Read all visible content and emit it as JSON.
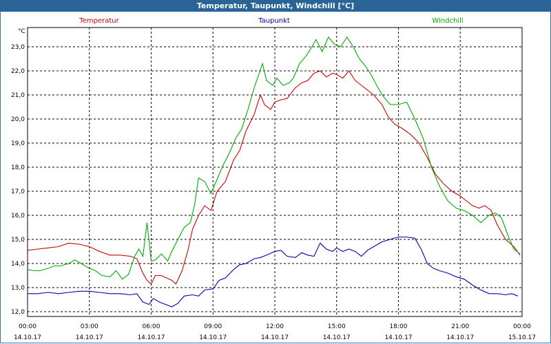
{
  "window": {
    "title": "Temperatur, Taupunkt, Windchill [°C]"
  },
  "chart_data": {
    "type": "line",
    "title": "Temperatur, Taupunkt, Windchill [°C]",
    "ylabel": "°C",
    "ylim": [
      11.8,
      23.8
    ],
    "xlim": [
      "14.10.17 00:00",
      "15.10.17 00:00"
    ],
    "grid": true,
    "legend_position": "top",
    "y_ticks": [
      "12,0",
      "13,0",
      "14,0",
      "15,0",
      "16,0",
      "17,0",
      "18,0",
      "19,0",
      "20,0",
      "21,0",
      "22,0",
      "23,0"
    ],
    "x_ticks": [
      {
        "time": "00:00",
        "date": "14.10.17"
      },
      {
        "time": "03:00",
        "date": "14.10.17"
      },
      {
        "time": "06:00",
        "date": "14.10.17"
      },
      {
        "time": "09:00",
        "date": "14.10.17"
      },
      {
        "time": "12:00",
        "date": "14.10.17"
      },
      {
        "time": "15:00",
        "date": "14.10.17"
      },
      {
        "time": "18:00",
        "date": "14.10.17"
      },
      {
        "time": "21:00",
        "date": "14.10.17"
      },
      {
        "time": "00:00",
        "date": "15.10.17"
      }
    ],
    "x_unit": "hours since 14.10.17 00:00",
    "series": [
      {
        "name": "Temperatur",
        "color": "#cc0000",
        "points": [
          [
            0,
            14.55
          ],
          [
            0.5,
            14.6
          ],
          [
            1,
            14.65
          ],
          [
            1.5,
            14.7
          ],
          [
            2,
            14.85
          ],
          [
            2.5,
            14.8
          ],
          [
            3,
            14.7
          ],
          [
            3.5,
            14.5
          ],
          [
            4,
            14.35
          ],
          [
            4.5,
            14.35
          ],
          [
            5,
            14.3
          ],
          [
            5.3,
            14.2
          ],
          [
            5.6,
            13.6
          ],
          [
            5.8,
            13.3
          ],
          [
            6,
            13.15
          ],
          [
            6.2,
            13.5
          ],
          [
            6.5,
            13.5
          ],
          [
            7,
            13.3
          ],
          [
            7.2,
            13.15
          ],
          [
            7.5,
            13.7
          ],
          [
            7.8,
            14.6
          ],
          [
            8,
            15.4
          ],
          [
            8.3,
            16.0
          ],
          [
            8.6,
            16.4
          ],
          [
            8.9,
            16.2
          ],
          [
            9.2,
            17.0
          ],
          [
            9.6,
            17.4
          ],
          [
            10,
            18.3
          ],
          [
            10.3,
            18.7
          ],
          [
            10.6,
            19.5
          ],
          [
            11,
            20.2
          ],
          [
            11.3,
            21.0
          ],
          [
            11.5,
            20.6
          ],
          [
            11.8,
            20.4
          ],
          [
            12,
            20.7
          ],
          [
            12.3,
            20.8
          ],
          [
            12.6,
            20.85
          ],
          [
            13,
            21.3
          ],
          [
            13.3,
            21.5
          ],
          [
            13.6,
            21.6
          ],
          [
            13.9,
            21.9
          ],
          [
            14.2,
            22.0
          ],
          [
            14.5,
            21.75
          ],
          [
            14.8,
            21.9
          ],
          [
            15,
            21.85
          ],
          [
            15.3,
            21.7
          ],
          [
            15.6,
            22.0
          ],
          [
            15.9,
            21.6
          ],
          [
            16.2,
            21.4
          ],
          [
            16.5,
            21.2
          ],
          [
            16.8,
            21.0
          ],
          [
            17.2,
            20.6
          ],
          [
            17.5,
            20.1
          ],
          [
            17.8,
            19.8
          ],
          [
            18.2,
            19.6
          ],
          [
            18.6,
            19.35
          ],
          [
            19,
            19.0
          ],
          [
            19.4,
            18.4
          ],
          [
            19.8,
            17.7
          ],
          [
            20.2,
            17.3
          ],
          [
            20.6,
            17.0
          ],
          [
            21,
            16.8
          ],
          [
            21.3,
            16.6
          ],
          [
            21.6,
            16.4
          ],
          [
            21.9,
            16.3
          ],
          [
            22.2,
            16.4
          ],
          [
            22.5,
            16.2
          ],
          [
            22.8,
            15.6
          ],
          [
            23.2,
            15.0
          ],
          [
            23.6,
            14.7
          ],
          [
            23.9,
            14.35
          ]
        ]
      },
      {
        "name": "Taupunkt",
        "color": "#0000aa",
        "points": [
          [
            0,
            12.75
          ],
          [
            0.5,
            12.75
          ],
          [
            1,
            12.8
          ],
          [
            1.5,
            12.75
          ],
          [
            2,
            12.8
          ],
          [
            2.5,
            12.85
          ],
          [
            3,
            12.85
          ],
          [
            3.5,
            12.8
          ],
          [
            4,
            12.75
          ],
          [
            4.5,
            12.75
          ],
          [
            5,
            12.7
          ],
          [
            5.3,
            12.75
          ],
          [
            5.6,
            12.4
          ],
          [
            5.9,
            12.3
          ],
          [
            6.1,
            12.55
          ],
          [
            6.4,
            12.4
          ],
          [
            6.7,
            12.3
          ],
          [
            7,
            12.2
          ],
          [
            7.3,
            12.35
          ],
          [
            7.6,
            12.65
          ],
          [
            8,
            12.7
          ],
          [
            8.3,
            12.65
          ],
          [
            8.6,
            12.9
          ],
          [
            9,
            12.95
          ],
          [
            9.3,
            13.3
          ],
          [
            9.6,
            13.4
          ],
          [
            10,
            13.75
          ],
          [
            10.3,
            13.95
          ],
          [
            10.6,
            14.0
          ],
          [
            11,
            14.2
          ],
          [
            11.3,
            14.25
          ],
          [
            11.6,
            14.35
          ],
          [
            12,
            14.5
          ],
          [
            12.3,
            14.55
          ],
          [
            12.6,
            14.3
          ],
          [
            13,
            14.25
          ],
          [
            13.3,
            14.45
          ],
          [
            13.6,
            14.35
          ],
          [
            13.9,
            14.3
          ],
          [
            14.2,
            14.85
          ],
          [
            14.5,
            14.6
          ],
          [
            14.8,
            14.5
          ],
          [
            15,
            14.65
          ],
          [
            15.3,
            14.5
          ],
          [
            15.6,
            14.6
          ],
          [
            15.9,
            14.5
          ],
          [
            16.2,
            14.3
          ],
          [
            16.5,
            14.55
          ],
          [
            16.8,
            14.7
          ],
          [
            17.2,
            14.9
          ],
          [
            17.6,
            15.0
          ],
          [
            18,
            15.1
          ],
          [
            18.4,
            15.1
          ],
          [
            18.8,
            15.05
          ],
          [
            19.1,
            14.6
          ],
          [
            19.4,
            14.0
          ],
          [
            19.7,
            13.8
          ],
          [
            20,
            13.7
          ],
          [
            20.4,
            13.6
          ],
          [
            20.8,
            13.45
          ],
          [
            21.2,
            13.35
          ],
          [
            21.6,
            13.1
          ],
          [
            22,
            12.9
          ],
          [
            22.4,
            12.75
          ],
          [
            22.8,
            12.75
          ],
          [
            23.2,
            12.7
          ],
          [
            23.5,
            12.75
          ],
          [
            23.8,
            12.65
          ]
        ]
      },
      {
        "name": "Windchill",
        "color": "#00aa00",
        "points": [
          [
            0,
            13.75
          ],
          [
            0.3,
            13.7
          ],
          [
            0.6,
            13.7
          ],
          [
            1,
            13.8
          ],
          [
            1.3,
            13.9
          ],
          [
            1.6,
            13.9
          ],
          [
            2,
            14.0
          ],
          [
            2.3,
            14.15
          ],
          [
            2.6,
            14.0
          ],
          [
            3,
            13.8
          ],
          [
            3.3,
            13.7
          ],
          [
            3.6,
            13.5
          ],
          [
            4,
            13.45
          ],
          [
            4.3,
            13.7
          ],
          [
            4.6,
            13.35
          ],
          [
            4.9,
            13.55
          ],
          [
            5.2,
            14.3
          ],
          [
            5.4,
            14.6
          ],
          [
            5.6,
            14.3
          ],
          [
            5.8,
            15.7
          ],
          [
            6,
            14.1
          ],
          [
            6.2,
            14.15
          ],
          [
            6.5,
            14.4
          ],
          [
            6.8,
            14.1
          ],
          [
            7,
            14.5
          ],
          [
            7.3,
            15.0
          ],
          [
            7.6,
            15.5
          ],
          [
            7.9,
            15.7
          ],
          [
            8.1,
            16.4
          ],
          [
            8.3,
            17.55
          ],
          [
            8.6,
            17.4
          ],
          [
            8.9,
            16.9
          ],
          [
            9.2,
            17.5
          ],
          [
            9.5,
            18.1
          ],
          [
            9.8,
            18.6
          ],
          [
            10.1,
            19.2
          ],
          [
            10.4,
            19.6
          ],
          [
            10.7,
            20.4
          ],
          [
            11,
            21.3
          ],
          [
            11.2,
            21.8
          ],
          [
            11.4,
            22.3
          ],
          [
            11.6,
            21.6
          ],
          [
            11.9,
            21.4
          ],
          [
            12.1,
            21.7
          ],
          [
            12.4,
            21.4
          ],
          [
            12.7,
            21.5
          ],
          [
            12.9,
            21.7
          ],
          [
            13.2,
            22.3
          ],
          [
            13.5,
            22.6
          ],
          [
            13.8,
            23.0
          ],
          [
            14,
            23.3
          ],
          [
            14.3,
            22.8
          ],
          [
            14.6,
            23.4
          ],
          [
            14.9,
            23.1
          ],
          [
            15.2,
            23.0
          ],
          [
            15.5,
            23.4
          ],
          [
            15.8,
            23.0
          ],
          [
            16.1,
            22.5
          ],
          [
            16.4,
            22.2
          ],
          [
            16.7,
            21.8
          ],
          [
            17,
            21.3
          ],
          [
            17.3,
            20.9
          ],
          [
            17.6,
            20.6
          ],
          [
            18,
            20.6
          ],
          [
            18.4,
            20.7
          ],
          [
            18.8,
            20.0
          ],
          [
            19.2,
            19.2
          ],
          [
            19.6,
            18.0
          ],
          [
            20,
            17.2
          ],
          [
            20.4,
            16.6
          ],
          [
            20.8,
            16.3
          ],
          [
            21.2,
            16.2
          ],
          [
            21.6,
            16.0
          ],
          [
            22,
            15.7
          ],
          [
            22.4,
            16.0
          ],
          [
            22.7,
            16.1
          ],
          [
            23,
            15.9
          ],
          [
            23.3,
            15.2
          ],
          [
            23.6,
            14.6
          ],
          [
            23.9,
            14.4
          ]
        ]
      }
    ]
  }
}
